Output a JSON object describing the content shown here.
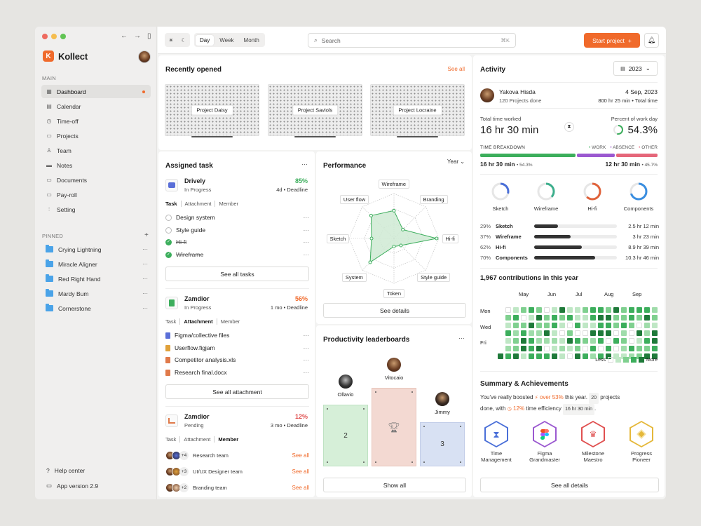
{
  "app": {
    "name": "Kollect"
  },
  "sidebar": {
    "main_label": "MAIN",
    "items": [
      {
        "label": "Dashboard",
        "icon": "grid-icon"
      },
      {
        "label": "Calendar",
        "icon": "calendar-icon"
      },
      {
        "label": "Time-off",
        "icon": "clock-icon"
      },
      {
        "label": "Projects",
        "icon": "folder-icon"
      },
      {
        "label": "Team",
        "icon": "user-icon"
      },
      {
        "label": "Notes",
        "icon": "notes-icon"
      },
      {
        "label": "Documents",
        "icon": "document-icon"
      },
      {
        "label": "Pay-roll",
        "icon": "wallet-icon"
      },
      {
        "label": "Setting",
        "icon": "sliders-icon"
      }
    ],
    "pinned_label": "PINNED",
    "pinned": [
      "Crying Lightning",
      "Miracle Aligner",
      "Red Right Hand",
      "Mardy Bum",
      "Cornerstone"
    ],
    "help": "Help center",
    "version": "App version 2.9"
  },
  "topbar": {
    "ranges": [
      "Day",
      "Week",
      "Month"
    ],
    "selected_range": "Day",
    "search_placeholder": "Search",
    "search_shortcut": "⌘K",
    "start_label": "Start project",
    "start_plus": "+"
  },
  "recent": {
    "title": "Recently opened",
    "see_all": "See all",
    "projects": [
      "Project Daisy",
      "Project Saviols",
      "Project Locraine"
    ]
  },
  "assigned": {
    "title": "Assigned task",
    "tabs": [
      "Task",
      "Attachment",
      "Member"
    ],
    "task1": {
      "name": "Drively",
      "status": "In Progress",
      "percent": "85%",
      "deadline": "4d",
      "deadline_label": "Deadline",
      "todos": [
        {
          "label": "Design system",
          "done": false
        },
        {
          "label": "Style guide",
          "done": false
        },
        {
          "label": "Hi-fi",
          "done": true
        },
        {
          "label": "Wireframe",
          "done": true
        }
      ],
      "button": "See all tasks"
    },
    "task2": {
      "name": "Zamdior",
      "status": "In Progress",
      "percent": "56%",
      "deadline": "1 mo",
      "deadline_label": "Deadline",
      "files": [
        "Figma/collective files",
        "Userflow.figjam",
        "Competitor analysis.xls",
        "Research final.docx"
      ],
      "button": "See all attachment"
    },
    "task3": {
      "name": "Zamdior",
      "status": "Pending",
      "percent": "12%",
      "deadline": "3 mo",
      "deadline_label": "Deadline",
      "teams": [
        {
          "extra": "+4",
          "name": "Research team",
          "link": "See all"
        },
        {
          "extra": "+3",
          "name": "UI/UX Designer team",
          "link": "See all"
        },
        {
          "extra": "+2",
          "name": "Branding team",
          "link": "See all"
        }
      ]
    }
  },
  "performance": {
    "title": "Performance",
    "period": "Year",
    "axes": [
      "Wireframe",
      "Branding",
      "Hi-fi",
      "Style guide",
      "Token",
      "System",
      "Sketch",
      "User flow"
    ],
    "values": [
      0.62,
      0.28,
      0.95,
      0.22,
      0.18,
      0.75,
      0.5,
      0.72
    ],
    "button": "See details"
  },
  "leaderboard": {
    "title": "Productivity leaderboards",
    "people": [
      {
        "name": "Ollavio",
        "rank": "2"
      },
      {
        "name": "Vitocaio",
        "rank": ""
      },
      {
        "name": "Jimmy",
        "rank": "3"
      }
    ],
    "button": "Show all"
  },
  "activity": {
    "title": "Activity",
    "year": "2023",
    "person": "Yakova Hisda",
    "projects_done": "120 Projects done",
    "date": "4 Sep, 2023",
    "total_time_line": "800 hr 25 min",
    "total_time_label": "Total time",
    "worked_label": "Total time worked",
    "worked_value": "16 hr 30 min",
    "percent_label": "Percent of work day",
    "percent_value": "54.3%",
    "percent_fraction": 0.543,
    "breakdown_label": "TIME BREAKDOWN",
    "legend": [
      "WORK",
      "ABSENCE",
      "OTHER"
    ],
    "colors": {
      "work": "#3cae5c",
      "absence": "#9b59d0",
      "other": "#e5677a"
    },
    "left_time": "16 hr 30 min",
    "left_pct": "54.3%",
    "right_time": "12 hr 30 min",
    "right_pct": "45.7%",
    "rings": [
      {
        "label": "Sketch",
        "color": "#4a6fd8",
        "value": 0.29
      },
      {
        "label": "Wireframe",
        "color": "#3cae8c",
        "value": 0.37
      },
      {
        "label": "Hi-fi",
        "color": "#e0623a",
        "value": 0.62
      },
      {
        "label": "Components",
        "color": "#3a8ee0",
        "value": 0.7
      }
    ],
    "stats": [
      {
        "pct": "29%",
        "name": "Sketch",
        "value": "2.5 hr 12 min",
        "fill": 0.29
      },
      {
        "pct": "37%",
        "name": "Wireframe",
        "value": "3 hr 23 min",
        "fill": 0.44
      },
      {
        "pct": "62%",
        "name": "Hi-fi",
        "value": "8.9 hr 39 min",
        "fill": 0.58
      },
      {
        "pct": "70%",
        "name": "Components",
        "value": "10.3 hr 46 min",
        "fill": 0.74
      }
    ],
    "contrib_title": "1,967 contributions in this year",
    "months": [
      "May",
      "Jun",
      "Jul",
      "Aug",
      "Sep"
    ],
    "days": [
      "Mon",
      "Wed",
      "Fri"
    ],
    "less": "Less",
    "more": "More",
    "summary_title": "Summary & Achievements",
    "summary_text1": "You've really boosted",
    "summary_pct1": "over 53%",
    "summary_text2": "this year.",
    "summary_badge1": "20",
    "summary_text3": "projects",
    "summary_text4": "done, with",
    "summary_pct2": "12%",
    "summary_text5": "time efficiency",
    "summary_badge2": "16 hr 30 min",
    "summary_text6": ".",
    "achievements": [
      {
        "label1": "Time",
        "label2": "Management",
        "color": "#4a6fd8",
        "icon": "hourglass-icon"
      },
      {
        "label1": "Figma",
        "label2": "Grandmaster",
        "color": "#9b59d0",
        "icon": "figma-icon"
      },
      {
        "label1": "Milestone",
        "label2": "Maestro",
        "color": "#e05050",
        "icon": "crown-icon"
      },
      {
        "label1": "Progress",
        "label2": "Pioneer",
        "color": "#e5b83a",
        "icon": "layers-icon"
      }
    ],
    "button": "See all details"
  }
}
